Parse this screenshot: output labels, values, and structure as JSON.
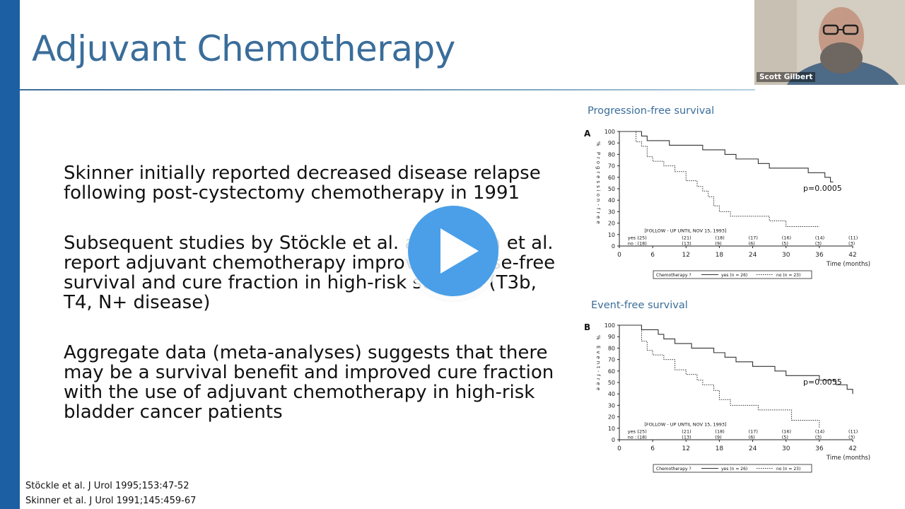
{
  "slide": {
    "title": "Adjuvant Chemotherapy",
    "bullets": [
      [
        "Skinner initially reported decreased disease relapse",
        "following post-cystectomy chemotherapy in 1991"
      ],
      [
        "Subsequent studies by Stöckle et al. and Freiha et al.",
        "report adjuvant chemotherapy improves disease-free",
        "survival and cure fraction in high-risk subsets (T3b,",
        "T4, N+ disease)"
      ],
      [
        "Aggregate data (meta-analyses) suggests that there",
        "may be a survival benefit and improved cure fraction",
        "with the use of adjuvant chemotherapy in high-risk",
        "bladder cancer patients"
      ]
    ],
    "references": [
      "Stöckle et al. J Urol 1995;153:47-52",
      "Skinner et al. J Urol 1991;145:459-67"
    ]
  },
  "video": {
    "participant_name": "Scott Gilbert"
  },
  "play_button": {
    "icon": "play-icon",
    "color": "#4a9fe8"
  },
  "chart_data": [
    {
      "type": "line",
      "panel_label": "A",
      "title": "Progression-free survival",
      "ylabel": "% Progression-free",
      "xlabel": "Time (months)",
      "xticks": [
        0,
        6,
        12,
        18,
        24,
        30,
        36,
        42
      ],
      "yticks": [
        0,
        10,
        20,
        30,
        40,
        50,
        60,
        70,
        80,
        90,
        100
      ],
      "xlim": [
        0,
        42
      ],
      "ylim": [
        0,
        100
      ],
      "p_value": "p=0.0005",
      "annotation": "[FOLLOW - UP UNTIL NOV 15, 1993]",
      "at_risk": {
        "yes": [
          "(25)",
          "(21)",
          "(18)",
          "(17)",
          "(16)",
          "(14)",
          "(11)"
        ],
        "no": [
          "(18)",
          "(13)",
          "(9)",
          "(6)",
          "(5)",
          "(3)",
          "(3)"
        ],
        "yes_label": "yes :",
        "no_label": "no :"
      },
      "legend": {
        "prefix": "Chemotherapy ?",
        "yes": "yes (n = 26)",
        "no": "no (n = 23)"
      },
      "series": [
        {
          "name": "yes",
          "style": "solid",
          "x": [
            0,
            3,
            4,
            5,
            7,
            9,
            12,
            15,
            18,
            19,
            21,
            24,
            25,
            27,
            30,
            33,
            34,
            36,
            37,
            38,
            38.5
          ],
          "y": [
            100,
            100,
            96,
            92,
            92,
            88,
            88,
            84,
            84,
            80,
            76,
            76,
            72,
            68,
            68,
            68,
            64,
            64,
            60,
            56,
            56
          ]
        },
        {
          "name": "no",
          "style": "dotted",
          "x": [
            0,
            2,
            3,
            4,
            5,
            6,
            8,
            10,
            12,
            14,
            15,
            16,
            17,
            18,
            20,
            24,
            27,
            30,
            33,
            36
          ],
          "y": [
            100,
            100,
            91,
            87,
            78,
            74,
            70,
            65,
            57,
            52,
            48,
            43,
            35,
            30,
            26,
            26,
            22,
            17,
            17,
            17
          ]
        }
      ]
    },
    {
      "type": "line",
      "panel_label": "B",
      "title": "Event-free survival",
      "ylabel": "% Event-free",
      "xlabel": "Time (months)",
      "xticks": [
        0,
        6,
        12,
        18,
        24,
        30,
        36,
        42
      ],
      "yticks": [
        0,
        10,
        20,
        30,
        40,
        50,
        60,
        70,
        80,
        90,
        100
      ],
      "xlim": [
        0,
        42
      ],
      "ylim": [
        0,
        100
      ],
      "p_value": "p=0.0055",
      "annotation": "[FOLLOW - UP UNTIL NOV 15, 1993]",
      "at_risk": {
        "yes": [
          "(25)",
          "(21)",
          "(18)",
          "(17)",
          "(16)",
          "(14)",
          "(11)"
        ],
        "no": [
          "(18)",
          "(13)",
          "(9)",
          "(6)",
          "(5)",
          "(3)",
          "(3)"
        ],
        "yes_label": "yes :",
        "no_label": "no :"
      },
      "legend": {
        "prefix": "Chemotherapy ?",
        "yes": "yes (n = 26)",
        "no": "no (n = 23)"
      },
      "series": [
        {
          "name": "yes",
          "style": "solid",
          "x": [
            0,
            3,
            4,
            6,
            7,
            8,
            10,
            12,
            13,
            15,
            17,
            19,
            21,
            24,
            26,
            28,
            30,
            33,
            36,
            37,
            39,
            40,
            41,
            42
          ],
          "y": [
            100,
            100,
            96,
            96,
            92,
            88,
            84,
            84,
            80,
            80,
            76,
            72,
            68,
            64,
            64,
            60,
            56,
            56,
            52,
            52,
            48,
            48,
            44,
            40
          ]
        },
        {
          "name": "no",
          "style": "dotted",
          "x": [
            0,
            2,
            4,
            5,
            6,
            8,
            10,
            12,
            14,
            15,
            17,
            18,
            20,
            24,
            25,
            30,
            31,
            36
          ],
          "y": [
            100,
            100,
            86,
            78,
            74,
            70,
            61,
            57,
            52,
            48,
            43,
            35,
            30,
            30,
            26,
            26,
            17,
            10
          ]
        }
      ]
    }
  ]
}
